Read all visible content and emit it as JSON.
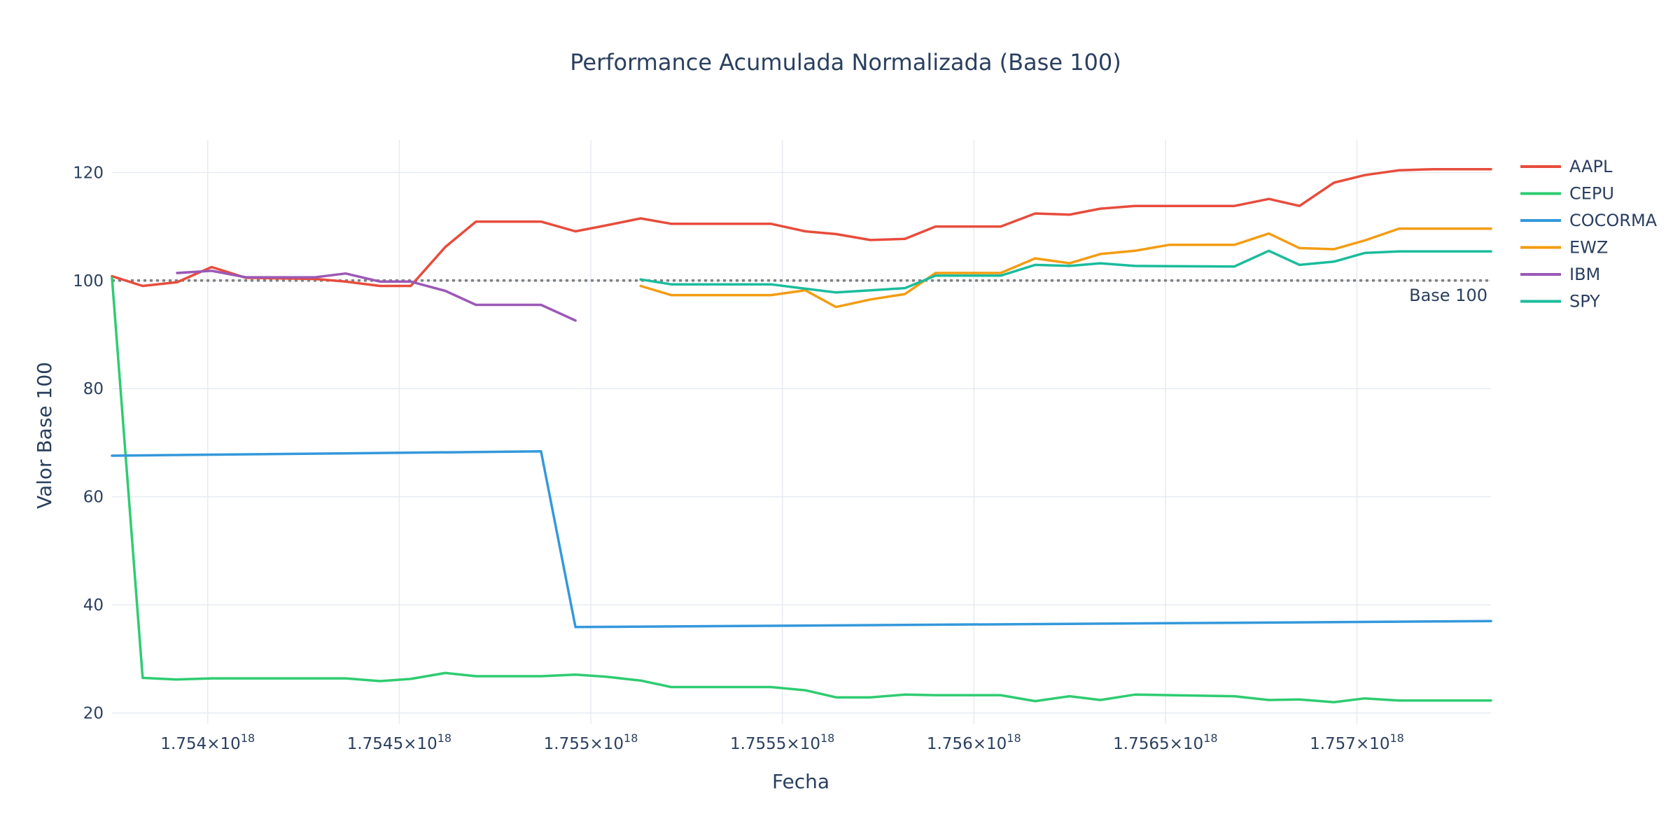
{
  "chart_data": {
    "type": "line",
    "title": "Performance Acumulada Normalizada (Base 100)",
    "xlabel": "Fecha",
    "ylabel": "Valor Base 100",
    "xlim": [
      1.75375e+18,
      1.75735e+18
    ],
    "ylim": [
      18,
      126
    ],
    "x_ticks": [
      {
        "value": 1.754e+18,
        "mant": "1.754",
        "exp": "18"
      },
      {
        "value": 1.7545e+18,
        "mant": "1.7545",
        "exp": "18"
      },
      {
        "value": 1.755e+18,
        "mant": "1.755",
        "exp": "18"
      },
      {
        "value": 1.7555e+18,
        "mant": "1.7555",
        "exp": "18"
      },
      {
        "value": 1.756e+18,
        "mant": "1.756",
        "exp": "18"
      },
      {
        "value": 1.7565e+18,
        "mant": "1.7565",
        "exp": "18"
      },
      {
        "value": 1.757e+18,
        "mant": "1.757",
        "exp": "18"
      }
    ],
    "times_sign": "×10",
    "y_ticks": [
      20,
      40,
      60,
      80,
      100,
      120
    ],
    "grid": true,
    "legend_position": "right",
    "reference_line": {
      "y": 100,
      "label": "Base 100",
      "color": "#7f7f7f"
    },
    "series": [
      {
        "name": "AAPL",
        "color": "#e74c3c",
        "x": [
          1.75375e+18,
          1.75383e+18,
          1.75392e+18,
          1.75401e+18,
          1.7541e+18,
          1.75428e+18,
          1.75436e+18,
          1.75445e+18,
          1.75453e+18,
          1.75462e+18,
          1.7547e+18,
          1.75487e+18,
          1.75496e+18,
          1.75504e+18,
          1.75513e+18,
          1.75521e+18,
          1.75547e+18,
          1.75556e+18,
          1.75564e+18,
          1.75573e+18,
          1.75582e+18,
          1.7559e+18,
          1.75607e+18,
          1.75616e+18,
          1.75625e+18,
          1.75633e+18,
          1.75642e+18,
          1.75668e+18,
          1.75677e+18,
          1.75685e+18,
          1.75694e+18,
          1.75702e+18,
          1.75711e+18,
          1.7572e+18,
          1.75728e+18,
          1.75735e+18
        ],
        "y": [
          100.8,
          99.0,
          99.7,
          102.5,
          100.5,
          100.3,
          99.8,
          99.0,
          99.0,
          106.2,
          110.9,
          110.9,
          109.1,
          110.2,
          111.5,
          110.5,
          110.5,
          109.1,
          108.6,
          107.5,
          107.7,
          110.0,
          110.0,
          112.4,
          112.2,
          113.3,
          113.8,
          113.8,
          115.1,
          113.8,
          118.1,
          119.5,
          120.4,
          120.6,
          120.6,
          120.6
        ]
      },
      {
        "name": "CEPU",
        "color": "#2ecc71",
        "x": [
          1.75375e+18,
          1.75383e+18,
          1.75392e+18,
          1.75401e+18,
          1.7541e+18,
          1.75436e+18,
          1.75445e+18,
          1.75453e+18,
          1.75462e+18,
          1.7547e+18,
          1.75487e+18,
          1.75496e+18,
          1.75504e+18,
          1.75513e+18,
          1.75521e+18,
          1.75547e+18,
          1.75556e+18,
          1.75564e+18,
          1.75573e+18,
          1.75582e+18,
          1.7559e+18,
          1.75607e+18,
          1.75616e+18,
          1.75625e+18,
          1.75633e+18,
          1.75642e+18,
          1.75668e+18,
          1.75677e+18,
          1.75685e+18,
          1.75694e+18,
          1.75702e+18,
          1.75711e+18,
          1.7572e+18,
          1.75735e+18
        ],
        "y": [
          100.5,
          26.5,
          26.2,
          26.4,
          26.4,
          26.4,
          25.9,
          26.3,
          27.4,
          26.8,
          26.8,
          27.1,
          26.7,
          26.0,
          24.8,
          24.8,
          24.2,
          22.9,
          22.9,
          23.4,
          23.3,
          23.3,
          22.2,
          23.1,
          22.4,
          23.4,
          23.1,
          22.4,
          22.5,
          22.0,
          22.7,
          22.3,
          22.3,
          22.3
        ]
      },
      {
        "name": "COCORMA",
        "color": "#3498db",
        "x": [
          1.75375e+18,
          1.75487e+18,
          1.75496e+18,
          1.75735e+18
        ],
        "y": [
          67.6,
          68.4,
          35.9,
          37.0
        ]
      },
      {
        "name": "EWZ",
        "color": "#f39c12",
        "x": [
          1.75513e+18,
          1.75521e+18,
          1.75547e+18,
          1.75556e+18,
          1.75564e+18,
          1.75573e+18,
          1.75582e+18,
          1.7559e+18,
          1.75607e+18,
          1.75616e+18,
          1.75625e+18,
          1.75633e+18,
          1.75642e+18,
          1.75651e+18,
          1.75668e+18,
          1.75677e+18,
          1.75685e+18,
          1.75694e+18,
          1.75702e+18,
          1.75711e+18,
          1.7572e+18,
          1.75735e+18
        ],
        "y": [
          99.0,
          97.3,
          97.3,
          98.2,
          95.1,
          96.5,
          97.5,
          101.4,
          101.4,
          104.1,
          103.2,
          104.9,
          105.5,
          106.6,
          106.6,
          108.7,
          106.0,
          105.8,
          107.4,
          109.6,
          109.6,
          109.6
        ]
      },
      {
        "name": "IBM",
        "color": "#9b59b6",
        "x": [
          1.75392e+18,
          1.75401e+18,
          1.7541e+18,
          1.75428e+18,
          1.75436e+18,
          1.75445e+18,
          1.75453e+18,
          1.75462e+18,
          1.7547e+18,
          1.75487e+18,
          1.75496e+18
        ],
        "y": [
          101.4,
          101.8,
          100.6,
          100.6,
          101.3,
          99.8,
          99.8,
          98.1,
          95.5,
          95.5,
          92.6
        ]
      },
      {
        "name": "SPY",
        "color": "#1abc9c",
        "x": [
          1.75513e+18,
          1.75521e+18,
          1.75547e+18,
          1.75556e+18,
          1.75564e+18,
          1.75573e+18,
          1.75582e+18,
          1.7559e+18,
          1.75607e+18,
          1.75616e+18,
          1.75625e+18,
          1.75633e+18,
          1.75642e+18,
          1.75668e+18,
          1.75677e+18,
          1.75685e+18,
          1.75694e+18,
          1.75702e+18,
          1.75711e+18,
          1.7572e+18,
          1.75735e+18
        ],
        "y": [
          100.2,
          99.3,
          99.3,
          98.5,
          97.8,
          98.2,
          98.6,
          100.9,
          100.9,
          102.9,
          102.7,
          103.2,
          102.7,
          102.6,
          105.5,
          102.9,
          103.5,
          105.1,
          105.4,
          105.4,
          105.4
        ]
      }
    ]
  }
}
